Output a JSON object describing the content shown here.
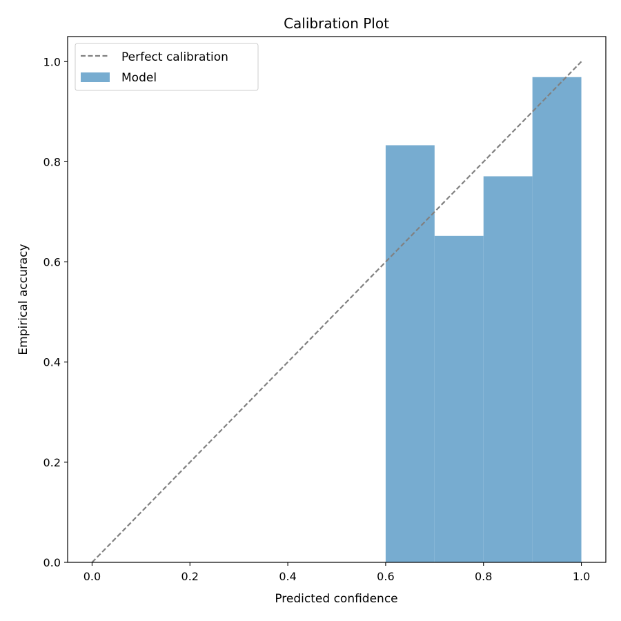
{
  "chart_data": {
    "type": "bar",
    "title": "Calibration Plot",
    "xlabel": "Predicted confidence",
    "ylabel": "Empirical accuracy",
    "xlim": [
      -0.05,
      1.05
    ],
    "ylim": [
      0.0,
      1.05
    ],
    "xticks": [
      0.0,
      0.2,
      0.4,
      0.6,
      0.8,
      1.0
    ],
    "yticks": [
      0.0,
      0.2,
      0.4,
      0.6,
      0.8,
      1.0
    ],
    "tick_labels_x": [
      "0.0",
      "0.2",
      "0.4",
      "0.6",
      "0.8",
      "1.0"
    ],
    "tick_labels_y": [
      "0.0",
      "0.2",
      "0.4",
      "0.6",
      "0.8",
      "1.0"
    ],
    "grid": false,
    "legend_position": "top-left",
    "series": [
      {
        "name": "Perfect calibration",
        "kind": "line",
        "style": "dashed",
        "color": "#808080",
        "x": [
          0.0,
          1.0
        ],
        "y": [
          0.0,
          1.0
        ]
      },
      {
        "name": "Model",
        "kind": "bar",
        "color": "#77acd0",
        "bins": [
          [
            0.6,
            0.7
          ],
          [
            0.7,
            0.8
          ],
          [
            0.8,
            0.9
          ],
          [
            0.9,
            1.0
          ]
        ],
        "values": [
          0.833,
          0.652,
          0.771,
          0.969
        ]
      }
    ]
  }
}
